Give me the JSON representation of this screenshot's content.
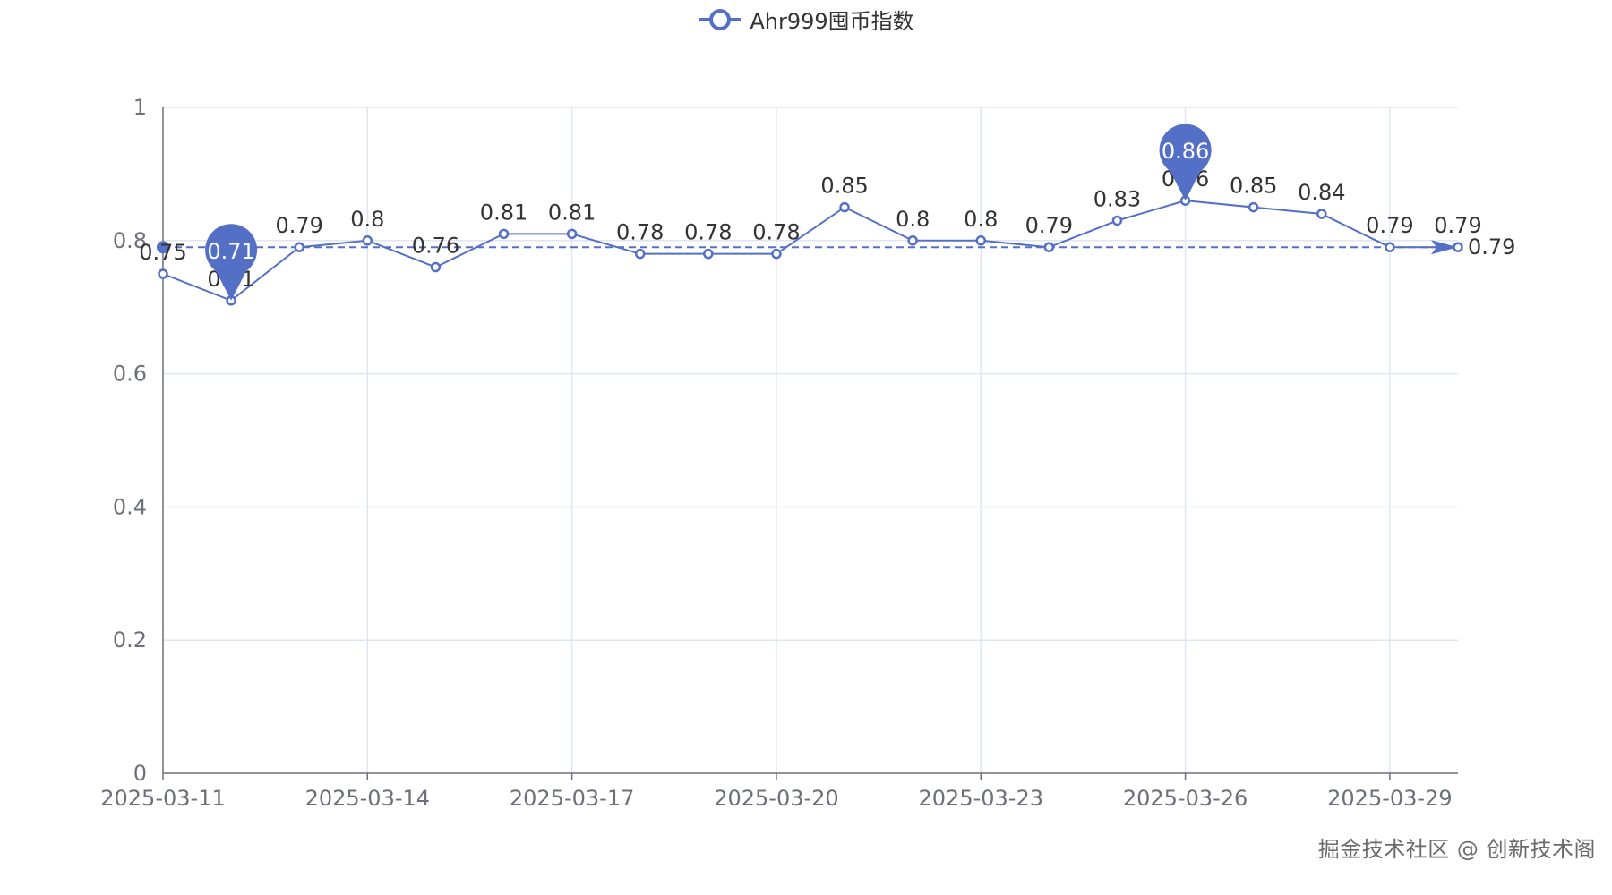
{
  "chart_data": {
    "type": "line",
    "legend": {
      "label": "Ahr999囤币指数",
      "placement": "top-center"
    },
    "x": [
      "2025-03-11",
      "2025-03-12",
      "2025-03-13",
      "2025-03-14",
      "2025-03-15",
      "2025-03-16",
      "2025-03-17",
      "2025-03-18",
      "2025-03-19",
      "2025-03-20",
      "2025-03-21",
      "2025-03-22",
      "2025-03-23",
      "2025-03-24",
      "2025-03-25",
      "2025-03-26",
      "2025-03-27",
      "2025-03-28",
      "2025-03-29",
      "2025-03-30"
    ],
    "x_tick_labels": [
      "2025-03-11",
      "2025-03-14",
      "2025-03-17",
      "2025-03-20",
      "2025-03-23",
      "2025-03-26",
      "2025-03-29"
    ],
    "series": [
      {
        "name": "Ahr999囤币指数",
        "values": [
          0.75,
          0.71,
          0.79,
          0.8,
          0.76,
          0.81,
          0.81,
          0.78,
          0.78,
          0.78,
          0.85,
          0.8,
          0.8,
          0.79,
          0.83,
          0.86,
          0.85,
          0.84,
          0.79,
          0.79
        ],
        "data_labels": [
          "0.75",
          "0.71",
          "0.79",
          "0.8",
          "0.76",
          "0.81",
          "0.81",
          "0.78",
          "0.78",
          "0.78",
          "0.85",
          "0.8",
          "0.8",
          "0.79",
          "0.83",
          "0.86",
          "0.85",
          "0.84",
          "0.79",
          "0.79"
        ]
      }
    ],
    "mark_points": [
      {
        "label": "0.71",
        "index": 1,
        "kind": "min"
      },
      {
        "label": "0.86",
        "index": 15,
        "kind": "max"
      }
    ],
    "mark_line": {
      "value": 0.79,
      "label": "0.79",
      "kind": "average"
    },
    "y_ticks": [
      0,
      0.2,
      0.4,
      0.6,
      0.8,
      1
    ],
    "y_tick_labels": [
      "0",
      "0.2",
      "0.4",
      "0.6",
      "0.8",
      "1"
    ],
    "ylim": [
      0,
      1
    ],
    "grid": true,
    "colors": {
      "series": "#5470c6",
      "grid": "#e0e6f1",
      "axis": "#6e7079",
      "label": "#333333"
    }
  },
  "watermark": "掘金技术社区 @ 创新技术阁"
}
